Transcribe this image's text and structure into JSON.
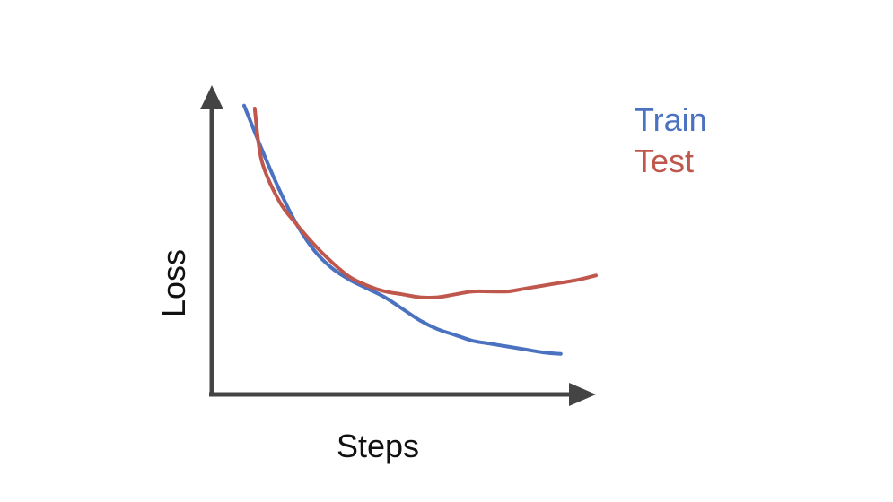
{
  "chart_data": {
    "type": "line",
    "title": "",
    "xlabel": "Steps",
    "ylabel": "Loss",
    "grid": false,
    "ticks_shown": false,
    "legend_placement": "top-right",
    "xlim": [
      0,
      100
    ],
    "ylim": [
      0,
      100
    ],
    "colors": {
      "axis": "#444444",
      "train": "#4a72c0",
      "test": "#c0574d"
    },
    "series": [
      {
        "name": "Train",
        "color": "#4a72c0",
        "x": [
          0,
          5,
          10,
          15,
          20,
          25,
          30,
          35,
          40,
          45,
          50,
          55,
          60,
          65,
          70,
          75,
          80,
          85,
          90
        ],
        "y": [
          97,
          82,
          68,
          56,
          47,
          41,
          37,
          34,
          31,
          27,
          23,
          20,
          18,
          16,
          15,
          14,
          13,
          12,
          11.5
        ]
      },
      {
        "name": "Test",
        "color": "#c0574d",
        "x": [
          3,
          5,
          10,
          15,
          20,
          25,
          30,
          35,
          40,
          45,
          50,
          55,
          60,
          65,
          70,
          75,
          80,
          85,
          90,
          95,
          100
        ],
        "y": [
          96,
          78,
          64,
          56,
          49,
          43,
          38,
          35,
          33,
          32,
          31,
          31,
          32,
          33,
          33,
          33,
          34,
          35,
          36,
          37,
          38.5
        ]
      }
    ]
  }
}
